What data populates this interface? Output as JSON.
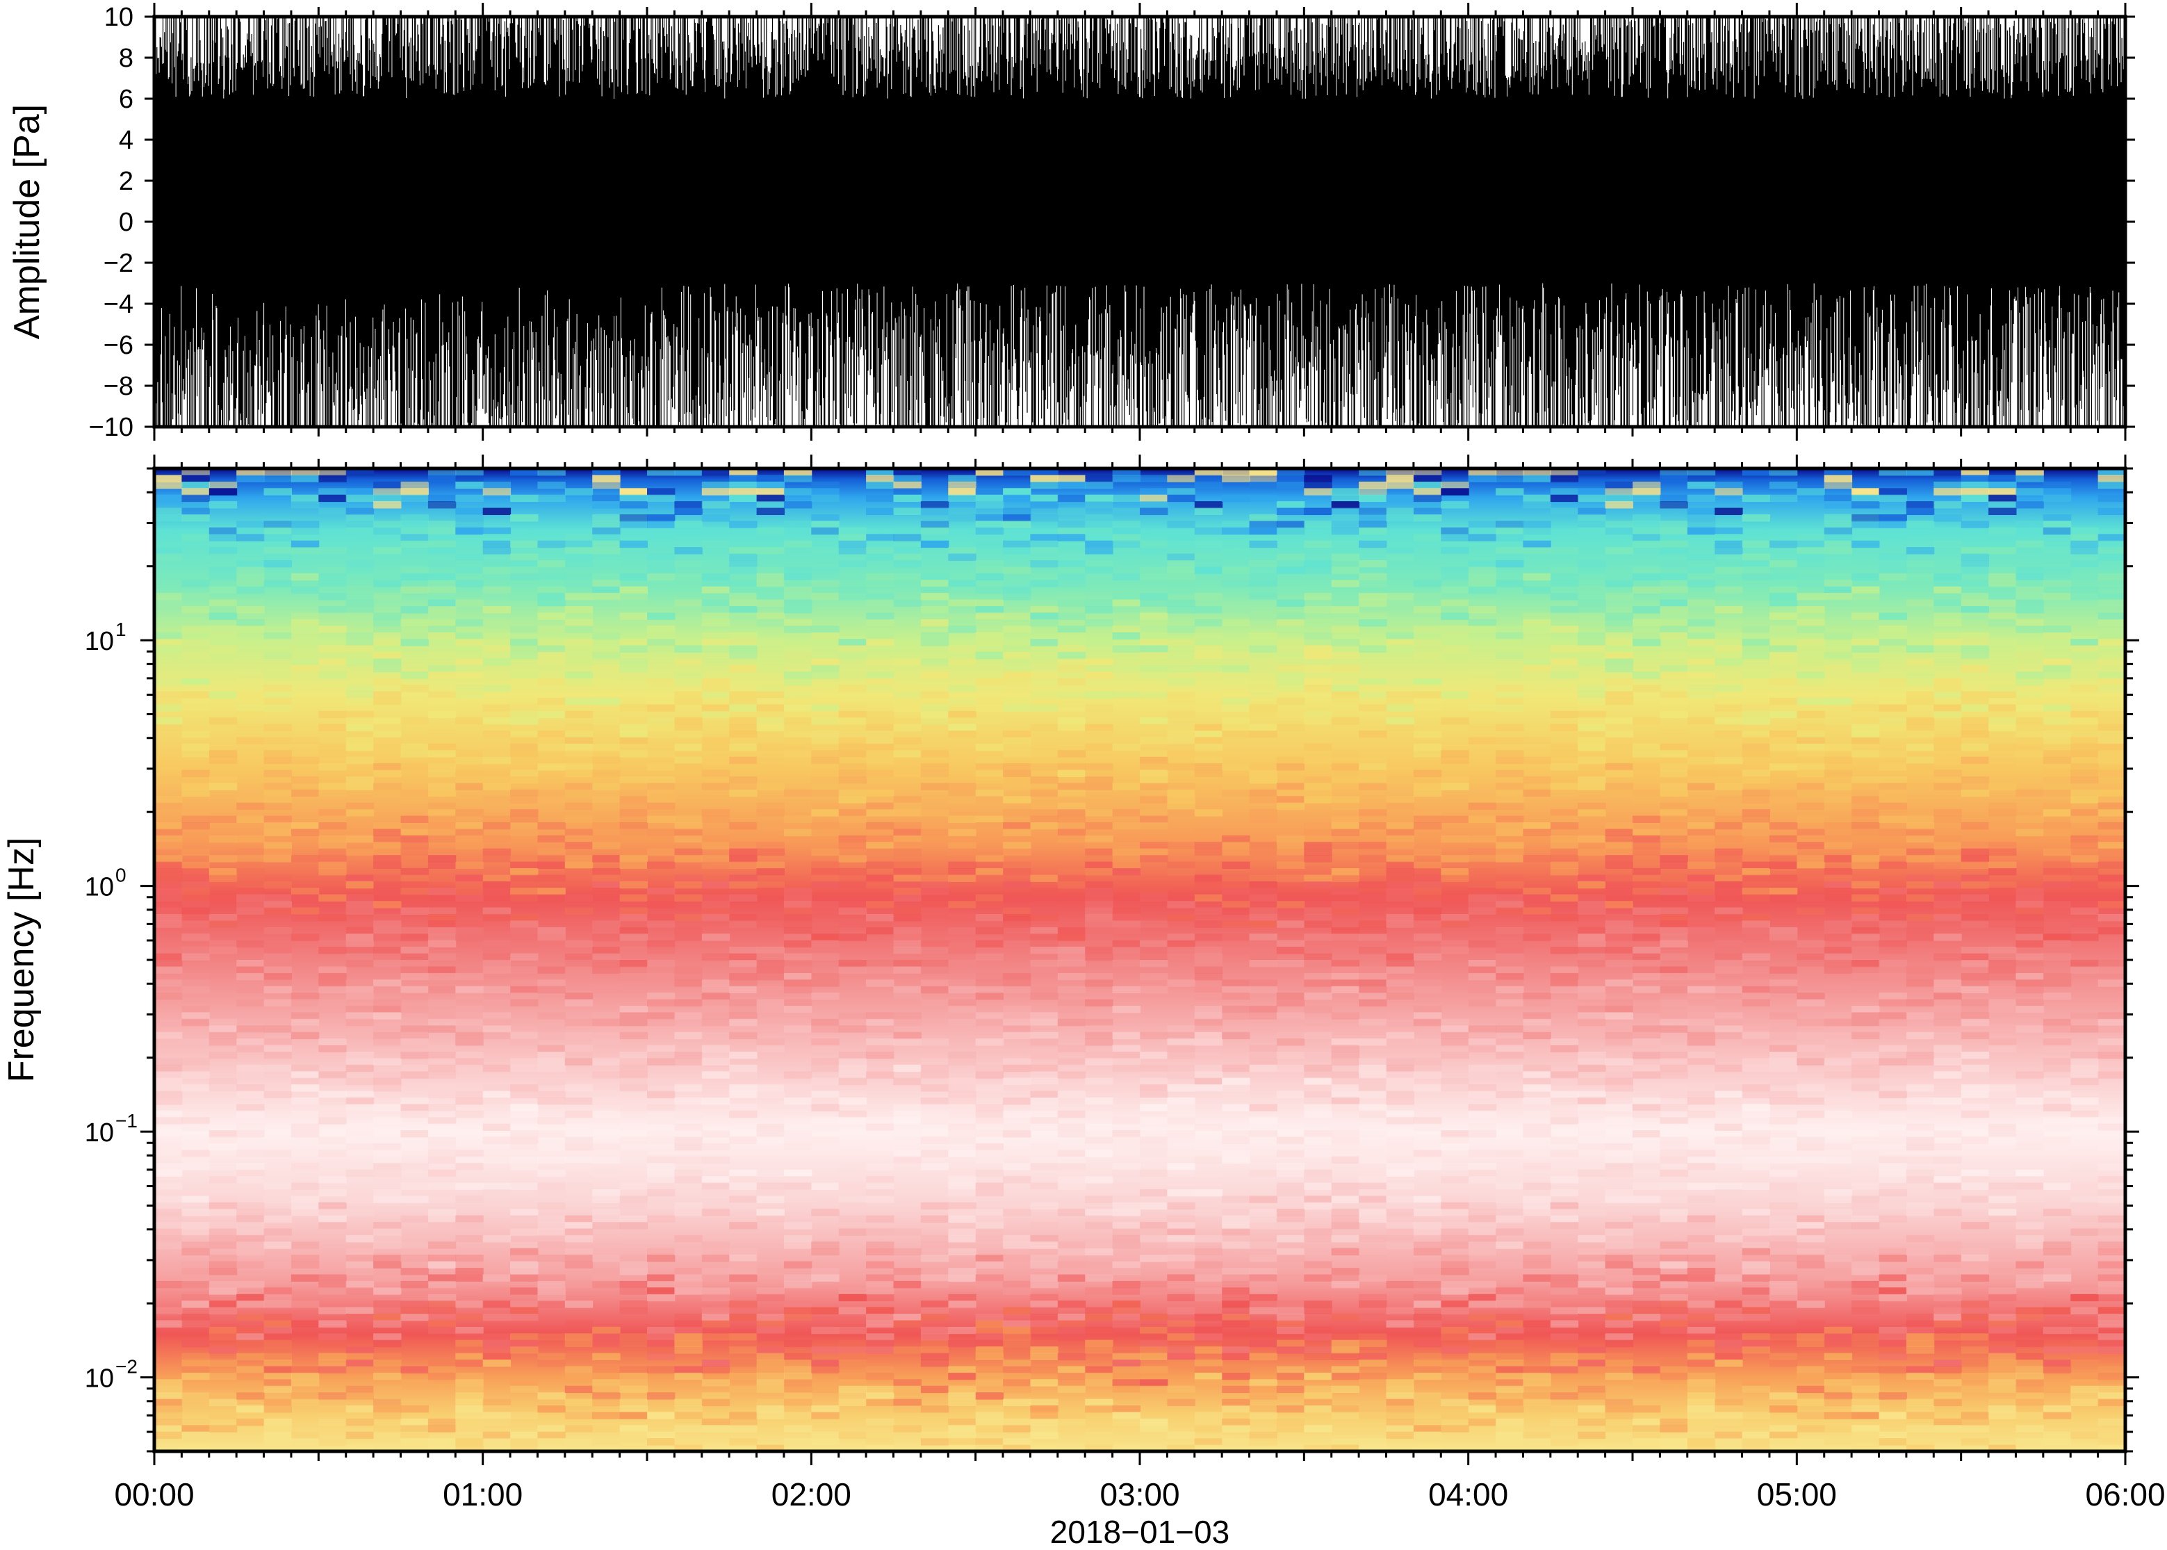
{
  "chart_data": [
    {
      "type": "line",
      "ylabel": "Amplitude [Pa]",
      "ylim": [
        -10,
        10
      ],
      "yticks": [
        "10",
        "8",
        "6",
        "4",
        "2",
        "0",
        "−2",
        "−4",
        "−6",
        "−8",
        "−10"
      ],
      "x_range": [
        "00:00",
        "06:00"
      ],
      "series": [
        {
          "color": "#000000",
          "description_points": "dense infrasound pressure waveform, clipped at ±10 Pa",
          "envelope_hours": [
            0.0,
            0.5,
            1.0,
            1.5,
            2.0,
            2.5,
            3.0,
            3.5,
            4.0,
            4.5,
            5.0,
            5.5,
            6.0
          ],
          "envelope_upper": [
            10,
            10,
            10,
            10,
            10,
            10,
            10,
            10,
            10,
            10,
            10,
            10,
            10
          ],
          "envelope_lower": [
            -10,
            -10,
            -10,
            -10,
            -10,
            -10,
            -10,
            -10,
            -10,
            -10,
            -10,
            -10,
            -10
          ]
        }
      ]
    },
    {
      "type": "heatmap",
      "ylabel": "Frequency [Hz]",
      "yscale": "log",
      "ylim": [
        0.005,
        50
      ],
      "yticks": [
        {
          "value": 10,
          "base": "10",
          "exp": "1"
        },
        {
          "value": 1,
          "base": "10",
          "exp": "0"
        },
        {
          "value": 0.1,
          "base": "10",
          "exp": "−1"
        },
        {
          "value": 0.01,
          "base": "10",
          "exp": "−2"
        }
      ],
      "colormap": "rainbow-white (dark blue high freq → cyan → yellow → orange → red → white → red → orange low freq)",
      "colors": {
        "dark_blue": "#0a0a8c",
        "blue": "#2fa6ee",
        "cyan": "#5ee2d4",
        "green_yellow": "#c8f08c",
        "yellow": "#f8e070",
        "orange": "#f8b05a",
        "red": "#f05656",
        "pink": "#f8b4b4",
        "white": "#ffffff"
      },
      "frequency_profile": [
        {
          "freq": 50,
          "color": "#0a0a8c"
        },
        {
          "freq": 45,
          "color": "#1560d8"
        },
        {
          "freq": 38,
          "color": "#2fa6ee"
        },
        {
          "freq": 28,
          "color": "#5ee2d4"
        },
        {
          "freq": 16,
          "color": "#80eab8"
        },
        {
          "freq": 10,
          "color": "#c8f08c"
        },
        {
          "freq": 6,
          "color": "#f0e878"
        },
        {
          "freq": 3,
          "color": "#f8c860"
        },
        {
          "freq": 1.5,
          "color": "#f89a58"
        },
        {
          "freq": 0.9,
          "color": "#f05656"
        },
        {
          "freq": 0.5,
          "color": "#f28282"
        },
        {
          "freq": 0.25,
          "color": "#f8b4b4"
        },
        {
          "freq": 0.1,
          "color": "#fff0f0"
        },
        {
          "freq": 0.05,
          "color": "#fbd4d4"
        },
        {
          "freq": 0.025,
          "color": "#f6a0a0"
        },
        {
          "freq": 0.015,
          "color": "#f05656"
        },
        {
          "freq": 0.01,
          "color": "#f8a058"
        },
        {
          "freq": 0.007,
          "color": "#f8d070"
        },
        {
          "freq": 0.005,
          "color": "#f8e48a"
        }
      ]
    }
  ],
  "xaxis": {
    "ticks": [
      "00:00",
      "01:00",
      "02:00",
      "03:00",
      "04:00",
      "05:00",
      "06:00"
    ],
    "date_label": "2018−01−03"
  }
}
